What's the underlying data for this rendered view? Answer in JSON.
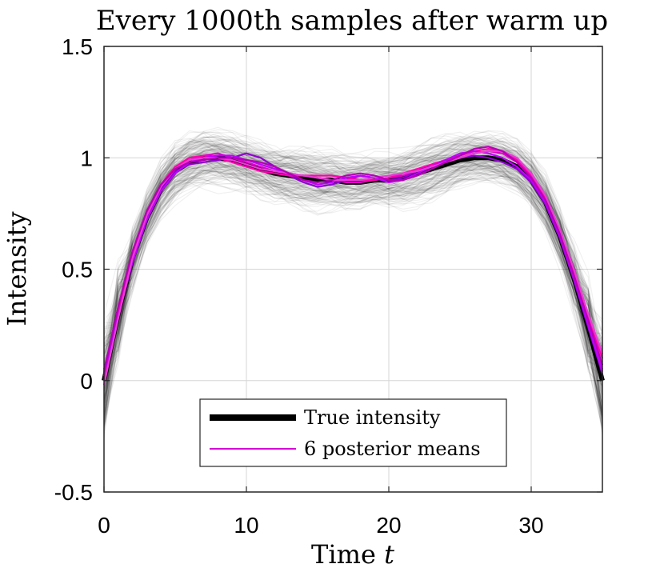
{
  "chart_data": {
    "type": "line",
    "title": "Every 1000th samples after warm up",
    "xlabel": "Time",
    "xlabel_var": "t",
    "ylabel": "Intensity",
    "xlim": [
      0,
      35
    ],
    "ylim": [
      -0.5,
      1.5
    ],
    "xticks": [
      0,
      10,
      20,
      30
    ],
    "yticks": [
      -0.5,
      0,
      0.5,
      1,
      1.5
    ],
    "grid": true,
    "legend_position": "bottom-center",
    "x": [
      0,
      1,
      2,
      3,
      4,
      5,
      6,
      7,
      8,
      9,
      10,
      11,
      12,
      13,
      14,
      15,
      16,
      17,
      18,
      19,
      20,
      21,
      22,
      23,
      24,
      25,
      26,
      27,
      28,
      29,
      30,
      31,
      32,
      33,
      34,
      35
    ],
    "series": [
      {
        "name": "True intensity",
        "color": "#000000",
        "style": "thick",
        "values": [
          0.0,
          0.3,
          0.55,
          0.73,
          0.86,
          0.94,
          0.98,
          1.0,
          1.0,
          0.99,
          0.97,
          0.95,
          0.93,
          0.92,
          0.91,
          0.9,
          0.9,
          0.89,
          0.89,
          0.9,
          0.9,
          0.91,
          0.93,
          0.95,
          0.97,
          0.99,
          1.0,
          1.0,
          0.99,
          0.96,
          0.9,
          0.8,
          0.65,
          0.46,
          0.24,
          0.0
        ]
      },
      {
        "name": "6 posterior means",
        "color": "#d400d4",
        "style": "thin",
        "means": [
          {
            "color": "#e000c8",
            "values": [
              0.02,
              0.32,
              0.56,
              0.74,
              0.87,
              0.95,
              0.99,
              1.01,
              1.02,
              1.0,
              0.98,
              0.96,
              0.94,
              0.93,
              0.92,
              0.91,
              0.9,
              0.89,
              0.89,
              0.9,
              0.91,
              0.92,
              0.94,
              0.96,
              0.98,
              1.0,
              1.02,
              1.03,
              1.02,
              0.98,
              0.91,
              0.81,
              0.66,
              0.47,
              0.26,
              0.05
            ]
          },
          {
            "color": "#9000d0",
            "values": [
              0.05,
              0.3,
              0.54,
              0.72,
              0.86,
              0.94,
              0.97,
              0.98,
              0.99,
              1.0,
              1.02,
              1.0,
              0.96,
              0.92,
              0.89,
              0.87,
              0.88,
              0.9,
              0.92,
              0.91,
              0.9,
              0.91,
              0.94,
              0.97,
              0.99,
              1.0,
              1.01,
              1.0,
              0.98,
              0.95,
              0.89,
              0.79,
              0.64,
              0.45,
              0.24,
              0.03
            ]
          },
          {
            "color": "#ff00b0",
            "values": [
              0.0,
              0.31,
              0.57,
              0.75,
              0.88,
              0.96,
              1.0,
              1.01,
              1.0,
              0.98,
              0.96,
              0.94,
              0.93,
              0.92,
              0.92,
              0.92,
              0.92,
              0.91,
              0.9,
              0.9,
              0.91,
              0.93,
              0.95,
              0.97,
              0.99,
              1.01,
              1.03,
              1.04,
              1.03,
              0.99,
              0.92,
              0.82,
              0.67,
              0.48,
              0.28,
              0.1
            ]
          },
          {
            "color": "#c000ff",
            "values": [
              0.03,
              0.29,
              0.53,
              0.72,
              0.85,
              0.93,
              0.98,
              1.0,
              1.01,
              1.01,
              0.99,
              0.97,
              0.95,
              0.93,
              0.9,
              0.88,
              0.89,
              0.91,
              0.92,
              0.91,
              0.89,
              0.9,
              0.93,
              0.96,
              0.99,
              1.02,
              1.03,
              1.02,
              1.0,
              0.96,
              0.9,
              0.8,
              0.65,
              0.46,
              0.25,
              0.04
            ]
          },
          {
            "color": "#e83cd8",
            "values": [
              -0.02,
              0.28,
              0.55,
              0.74,
              0.87,
              0.95,
              0.99,
              1.0,
              1.0,
              0.99,
              0.97,
              0.95,
              0.94,
              0.93,
              0.92,
              0.91,
              0.9,
              0.9,
              0.9,
              0.91,
              0.92,
              0.93,
              0.94,
              0.96,
              0.98,
              1.0,
              1.02,
              1.03,
              1.03,
              1.0,
              0.93,
              0.83,
              0.68,
              0.5,
              0.3,
              0.12
            ]
          },
          {
            "color": "#b400b4",
            "values": [
              0.04,
              0.33,
              0.58,
              0.76,
              0.88,
              0.95,
              0.98,
              0.99,
              1.0,
              1.0,
              0.99,
              0.98,
              0.96,
              0.93,
              0.9,
              0.89,
              0.9,
              0.92,
              0.93,
              0.92,
              0.9,
              0.9,
              0.92,
              0.95,
              0.98,
              1.01,
              1.04,
              1.05,
              1.03,
              0.98,
              0.91,
              0.81,
              0.66,
              0.47,
              0.27,
              0.07
            ]
          }
        ]
      }
    ],
    "samples": {
      "color": "#000000",
      "opacity": 0.06,
      "count": 180,
      "spread": 0.09
    }
  }
}
